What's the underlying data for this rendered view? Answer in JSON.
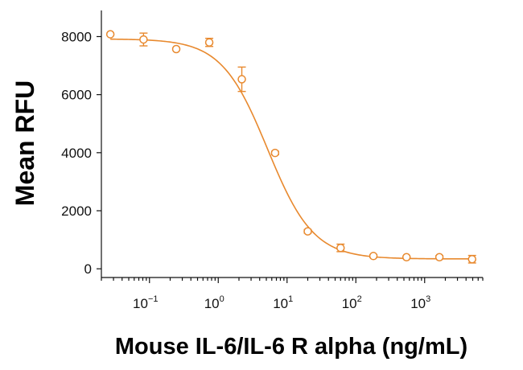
{
  "chart_data": {
    "type": "scatter",
    "title": "",
    "xlabel": "Mouse IL-6/IL-6 R alpha (ng/mL)",
    "ylabel": "Mean RFU",
    "xscale": "log10",
    "xlim": [
      0.02,
      7000
    ],
    "ylim": [
      -300,
      8900
    ],
    "x_ticks": [
      {
        "value": 0.1,
        "base": "10",
        "exp": "−1"
      },
      {
        "value": 1,
        "base": "10",
        "exp": "0"
      },
      {
        "value": 10,
        "base": "10",
        "exp": "1"
      },
      {
        "value": 100,
        "base": "10",
        "exp": "2"
      },
      {
        "value": 1000,
        "base": "10",
        "exp": "3"
      }
    ],
    "y_ticks": [
      0,
      2000,
      4000,
      6000,
      8000
    ],
    "color": "#e8892e",
    "series": [
      {
        "name": "Mean RFU",
        "points": [
          {
            "x": 0.027,
            "y": 8080,
            "err": 0
          },
          {
            "x": 0.082,
            "y": 7900,
            "err": 220
          },
          {
            "x": 0.245,
            "y": 7570,
            "err": 0
          },
          {
            "x": 0.74,
            "y": 7800,
            "err": 140
          },
          {
            "x": 2.2,
            "y": 6530,
            "err": 420
          },
          {
            "x": 6.7,
            "y": 3990,
            "err": 60
          },
          {
            "x": 20,
            "y": 1290,
            "err": 60
          },
          {
            "x": 60,
            "y": 720,
            "err": 130
          },
          {
            "x": 180,
            "y": 440,
            "err": 50
          },
          {
            "x": 545,
            "y": 400,
            "err": 30
          },
          {
            "x": 1640,
            "y": 400,
            "err": 50
          },
          {
            "x": 4900,
            "y": 330,
            "err": 130
          }
        ]
      }
    ],
    "fit": {
      "model": "4PL",
      "top": 7920,
      "bottom": 340,
      "ec50": 5.2,
      "hill": 1.3
    }
  }
}
